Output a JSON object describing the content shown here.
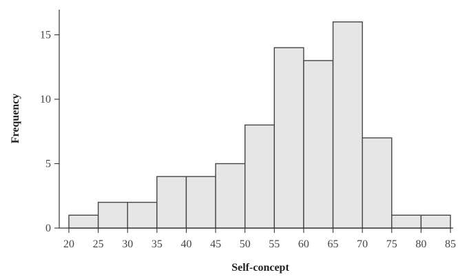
{
  "chart_data": {
    "type": "bar",
    "title": "",
    "xlabel": "Self-concept",
    "ylabel": "Frequency",
    "bin_edges": [
      20,
      25,
      30,
      35,
      40,
      45,
      50,
      55,
      60,
      65,
      70,
      75,
      80,
      85
    ],
    "values": [
      1,
      2,
      2,
      4,
      4,
      5,
      8,
      14,
      13,
      16,
      7,
      1,
      1
    ],
    "xlim": [
      20,
      85
    ],
    "ylim": [
      0,
      17
    ],
    "x_ticks": [
      "20",
      "25",
      "30",
      "35",
      "40",
      "45",
      "50",
      "55",
      "60",
      "65",
      "70",
      "75",
      "80",
      "85"
    ],
    "y_ticks": [
      "0",
      "5",
      "10",
      "15"
    ],
    "grid": false,
    "bar_fill": "#e6e6e6",
    "bar_edge": "#444444"
  }
}
